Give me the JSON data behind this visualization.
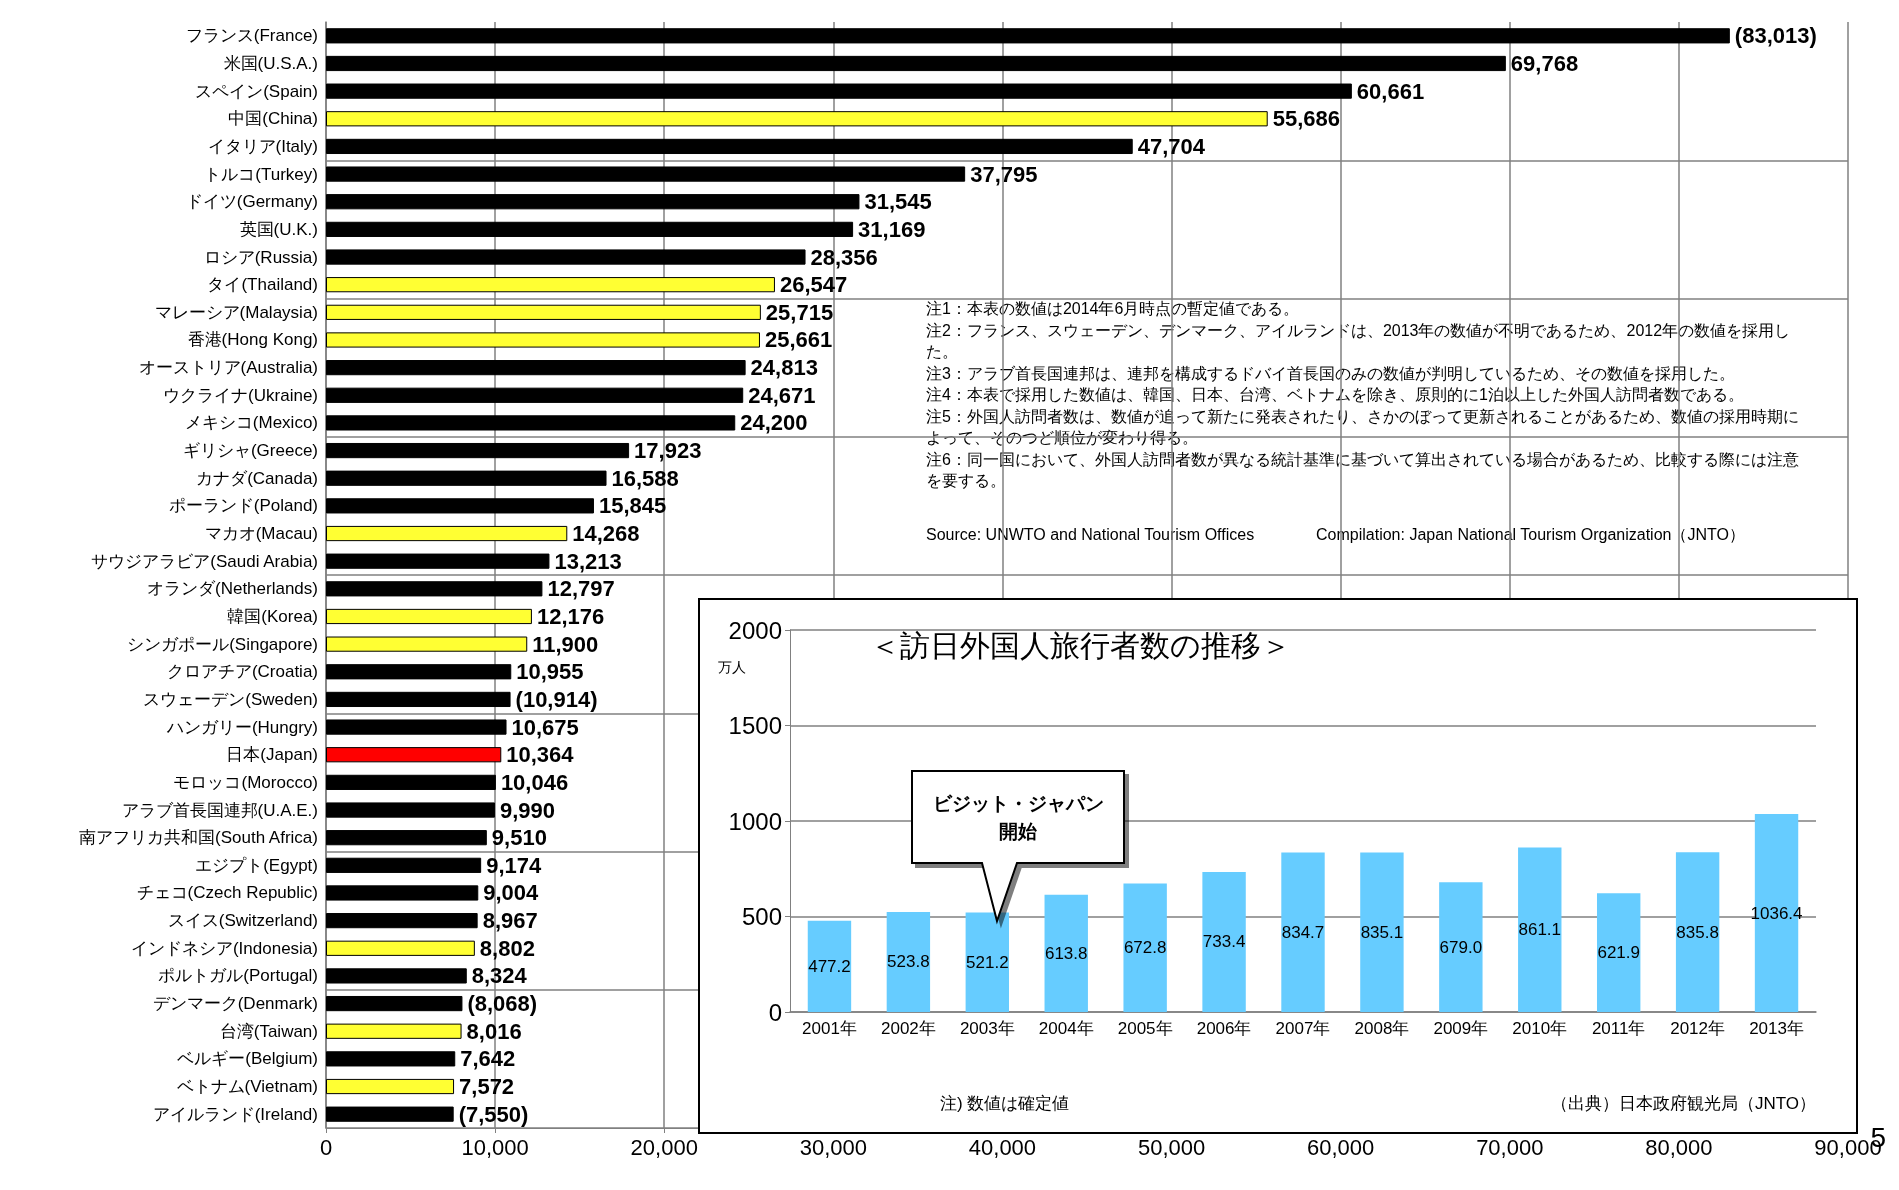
{
  "chart_data": [
    {
      "type": "bar",
      "orientation": "horizontal",
      "categories": [
        "フランス(France)",
        "米国(U.S.A.)",
        "スペイン(Spain)",
        "中国(China)",
        "イタリア(Italy)",
        "トルコ(Turkey)",
        "ドイツ(Germany)",
        "英国(U.K.)",
        "ロシア(Russia)",
        "タイ(Thailand)",
        "マレーシア(Malaysia)",
        "香港(Hong Kong)",
        "オーストリア(Australia)",
        "ウクライナ(Ukraine)",
        "メキシコ(Mexico)",
        "ギリシャ(Greece)",
        "カナダ(Canada)",
        "ポーランド(Poland)",
        "マカオ(Macau)",
        "サウジアラビア(Saudi Arabia)",
        "オランダ(Netherlands)",
        "韓国(Korea)",
        "シンガポール(Singapore)",
        "クロアチア(Croatia)",
        "スウェーデン(Sweden)",
        "ハンガリー(Hungry)",
        "日本(Japan)",
        "モロッコ(Morocco)",
        "アラブ首長国連邦(U.A.E.)",
        "南アフリカ共和国(South Africa)",
        "エジプト(Egypt)",
        "チェコ(Czech Republic)",
        "スイス(Switzerland)",
        "インドネシア(Indonesia)",
        "ポルトガル(Portugal)",
        "デンマーク(Denmark)",
        "台湾(Taiwan)",
        "ベルギー(Belgium)",
        "ベトナム(Vietnam)",
        "アイルランド(Ireland)"
      ],
      "values": [
        83013,
        69768,
        60661,
        55686,
        47704,
        37795,
        31545,
        31169,
        28356,
        26547,
        25715,
        25661,
        24813,
        24671,
        24200,
        17923,
        16588,
        15845,
        14268,
        13213,
        12797,
        12176,
        11900,
        10955,
        10914,
        10675,
        10364,
        10046,
        9990,
        9510,
        9174,
        9004,
        8967,
        8802,
        8324,
        8068,
        8016,
        7642,
        7572,
        7550
      ],
      "value_labels": [
        "(83,013)",
        "69,768",
        "60,661",
        "55,686",
        "47,704",
        "37,795",
        "31,545",
        "31,169",
        "28,356",
        "26,547",
        "25,715",
        "25,661",
        "24,813",
        "24,671",
        "24,200",
        "17,923",
        "16,588",
        "15,845",
        "14,268",
        "13,213",
        "12,797",
        "12,176",
        "11,900",
        "10,955",
        "(10,914)",
        "10,675",
        "10,364",
        "10,046",
        "9,990",
        "9,510",
        "9,174",
        "9,004",
        "8,967",
        "8,802",
        "8,324",
        "(8,068)",
        "8,016",
        "7,642",
        "7,572",
        "(7,550)"
      ],
      "colors": [
        "#000000",
        "#000000",
        "#000000",
        "#ffff33",
        "#000000",
        "#000000",
        "#000000",
        "#000000",
        "#000000",
        "#ffff33",
        "#ffff33",
        "#ffff33",
        "#000000",
        "#000000",
        "#000000",
        "#000000",
        "#000000",
        "#000000",
        "#ffff33",
        "#000000",
        "#000000",
        "#ffff33",
        "#ffff33",
        "#000000",
        "#000000",
        "#000000",
        "#ff0000",
        "#000000",
        "#000000",
        "#000000",
        "#000000",
        "#000000",
        "#000000",
        "#ffff33",
        "#000000",
        "#000000",
        "#ffff33",
        "#000000",
        "#ffff33",
        "#000000"
      ],
      "xlim": [
        0,
        90000
      ],
      "xticks": [
        0,
        {
          "value": 10000,
          "label": "10,000"
        },
        {
          "value": 20000,
          "label": "20,000"
        },
        {
          "value": 30000,
          "label": "30,000"
        },
        {
          "value": 40000,
          "label": "40,000"
        },
        {
          "value": 50000,
          "label": "50,000"
        },
        {
          "value": 60000,
          "label": "60,000"
        },
        {
          "value": 70000,
          "label": "70,000"
        },
        {
          "value": 80000,
          "label": "80,000"
        },
        {
          "value": 90000,
          "label": "90,000"
        }
      ],
      "grid": true,
      "annotations": [
        "注1：本表の数値は2014年6月時点の暫定値である。",
        "注2：フランス、スウェーデン、デンマーク、アイルランドは、2013年の数値が不明であるため、2012年の数値を採用した。",
        "注3：アラブ首長国連邦は、連邦を構成するドバイ首長国のみの数値が判明しているため、その数値を採用した。",
        "注4：本表で採用した数値は、韓国、日本、台湾、ベトナムを除き、原則的に1泊以上した外国人訪問者数である。",
        "注5：外国人訪問者数は、数値が追って新たに発表されたり、さかのぼって更新されることがあるため、数値の採用時期によって、そのつど順位が変わり得る。",
        "注6：同一国において、外国人訪問者数が異なる統計基準に基づいて算出されている場合があるため、比較する際には注意を要する。",
        "Source: UNWTO and National Tourism Offices",
        "Compilation: Japan National Tourism Organization（JNTO）",
        "5"
      ]
    },
    {
      "type": "bar",
      "title": "＜訪日外国人旅行者数の推移＞",
      "ylabel": "万人",
      "categories": [
        "2001年",
        "2002年",
        "2003年",
        "2004年",
        "2005年",
        "2006年",
        "2007年",
        "2008年",
        "2009年",
        "2010年",
        "2011年",
        "2012年",
        "2013年"
      ],
      "values": [
        477.2,
        523.8,
        521.2,
        613.8,
        672.8,
        733.4,
        834.7,
        835.1,
        679.0,
        861.1,
        621.9,
        835.8,
        1036.4
      ],
      "value_labels": [
        "477.2",
        "523.8",
        "521.2",
        "613.8",
        "672.8",
        "733.4",
        "834.7",
        "835.1",
        "679.0",
        "861.1",
        "621.9",
        "835.8",
        "1036.4"
      ],
      "color": "#66ccff",
      "ylim": [
        0,
        2000
      ],
      "yticks": [
        0,
        500,
        1000,
        1500,
        2000
      ],
      "grid": "y",
      "annotations": [
        "ビジット・ジャパン開始",
        "注) 数値は確定値",
        "（出典）日本政府観光局（JNTO）"
      ]
    }
  ]
}
